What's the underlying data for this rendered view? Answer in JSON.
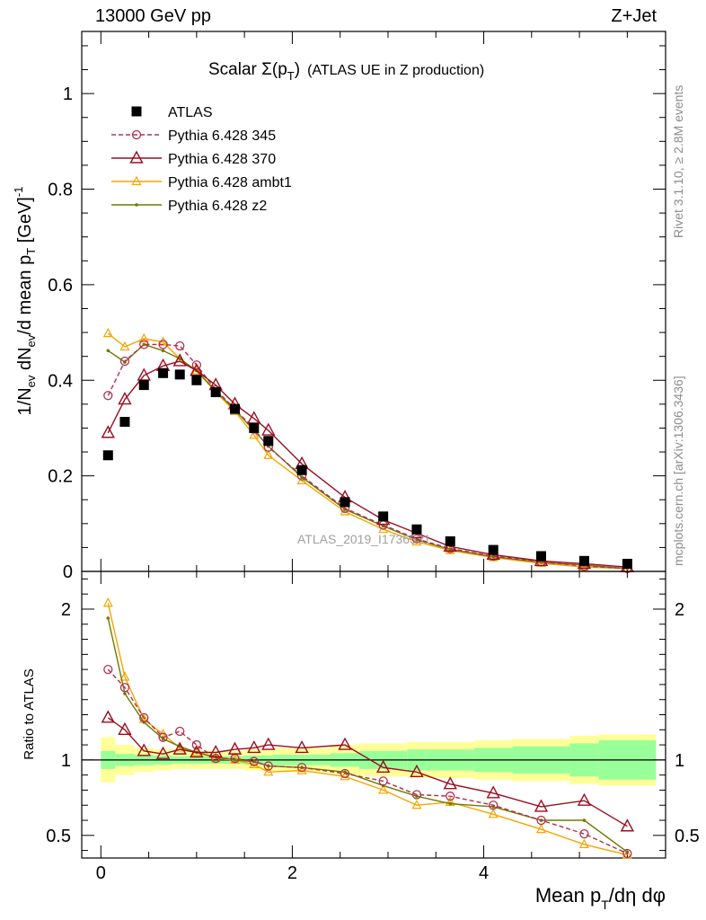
{
  "header": {
    "left": "13000 GeV pp",
    "right": "Z+Jet"
  },
  "title": {
    "main": "Scalar Σ(p",
    "sub": "T",
    "close": ")",
    "extra": "(ATLAS UE in Z production)"
  },
  "side": {
    "rivet": "Rivet 3.1.10, ≥ 2.8M events",
    "mcplots": "mcplots.cern.ch [arXiv:1306.3436]"
  },
  "watermark": "ATLAS_2019_I1736531",
  "colors": {
    "atlas": "#000000",
    "p345": "#b03050",
    "p370": "#9b0d20",
    "ambt1": "#f5a500",
    "z2": "#6e7a00",
    "band_inner": "#99ff99",
    "band_outer": "#ffff99"
  },
  "chart_data": [
    {
      "type": "scatter",
      "xlabel": "Mean p_T/dη dφ",
      "ylabel": "1/N_ev dN_ev/d mean p_T [GeV]^-1",
      "xlim": [
        -0.2,
        5.9
      ],
      "ylim": [
        0,
        1.13
      ],
      "yticks": [
        0,
        0.2,
        0.4,
        0.6,
        0.8,
        1
      ],
      "ytick_labels": [
        "0",
        "0.2",
        "0.4",
        "0.6",
        "0.8",
        "1"
      ],
      "legend_position": "top-left",
      "x": [
        0.075,
        0.25,
        0.45,
        0.65,
        0.825,
        1.0,
        1.2,
        1.4,
        1.6,
        1.75,
        2.1,
        2.55,
        2.95,
        3.3,
        3.65,
        4.1,
        4.6,
        5.05,
        5.5
      ],
      "series": [
        {
          "name": "ATLAS",
          "values": [
            0.243,
            0.313,
            0.39,
            0.415,
            0.412,
            0.4,
            0.375,
            0.34,
            0.3,
            0.273,
            0.212,
            0.145,
            0.115,
            0.088,
            0.063,
            0.045,
            0.032,
            0.022,
            0.016
          ]
        },
        {
          "name": "Pythia 6.428 345",
          "values": [
            0.368,
            0.44,
            0.475,
            0.475,
            0.472,
            0.432,
            0.38,
            0.34,
            0.298,
            0.26,
            0.2,
            0.132,
            0.097,
            0.068,
            0.048,
            0.032,
            0.02,
            0.011,
            0.006
          ]
        },
        {
          "name": "Pythia 6.428 370",
          "values": [
            0.29,
            0.36,
            0.41,
            0.43,
            0.44,
            0.42,
            0.39,
            0.35,
            0.32,
            0.295,
            0.225,
            0.155,
            0.108,
            0.08,
            0.052,
            0.035,
            0.022,
            0.016,
            0.009
          ]
        },
        {
          "name": "Pythia 6.428 ambt1",
          "values": [
            0.498,
            0.47,
            0.487,
            0.48,
            0.445,
            0.42,
            0.375,
            0.335,
            0.285,
            0.243,
            0.19,
            0.125,
            0.088,
            0.062,
            0.044,
            0.029,
            0.017,
            0.009,
            0.006
          ]
        },
        {
          "name": "Pythia 6.428 z2",
          "values": [
            0.462,
            0.438,
            0.475,
            0.462,
            0.445,
            0.42,
            0.378,
            0.338,
            0.295,
            0.262,
            0.197,
            0.13,
            0.095,
            0.066,
            0.046,
            0.031,
            0.019,
            0.013,
            0.006
          ]
        }
      ]
    },
    {
      "type": "line",
      "xlabel": "Mean p_T/dη dφ",
      "ylabel": "Ratio to ATLAS",
      "xlim": [
        -0.2,
        5.9
      ],
      "ylim": [
        0.35,
        2.25
      ],
      "xticks": [
        0,
        2,
        4
      ],
      "xtick_labels": [
        "0",
        "2",
        "4"
      ],
      "yticks": [
        0.5,
        1,
        2
      ],
      "ytick_labels": [
        "0.5",
        "1",
        "2"
      ],
      "reference_line": 1,
      "x": [
        0.075,
        0.25,
        0.45,
        0.65,
        0.825,
        1.0,
        1.2,
        1.4,
        1.6,
        1.75,
        2.1,
        2.55,
        2.95,
        3.3,
        3.65,
        4.1,
        4.6,
        5.05,
        5.5
      ],
      "band_edges": [
        0.0,
        0.15,
        0.35,
        0.55,
        0.75,
        0.9,
        1.1,
        1.3,
        1.5,
        1.7,
        1.8,
        2.4,
        2.7,
        3.2,
        3.4,
        3.9,
        4.3,
        4.9,
        5.2,
        5.8
      ],
      "band_inner": [
        0.06,
        0.04,
        0.035,
        0.03,
        0.025,
        0.025,
        0.025,
        0.025,
        0.03,
        0.03,
        0.035,
        0.045,
        0.06,
        0.07,
        0.07,
        0.08,
        0.09,
        0.11,
        0.13
      ],
      "band_outer": [
        0.15,
        0.1,
        0.08,
        0.07,
        0.06,
        0.06,
        0.06,
        0.06,
        0.07,
        0.07,
        0.08,
        0.1,
        0.11,
        0.12,
        0.12,
        0.13,
        0.14,
        0.16,
        0.17
      ],
      "series": [
        {
          "name": "Pythia 6.428 345",
          "values": [
            1.6,
            1.48,
            1.28,
            1.15,
            1.19,
            1.1,
            1.01,
            1.01,
            0.99,
            0.96,
            0.95,
            0.91,
            0.86,
            0.77,
            0.76,
            0.7,
            0.6,
            0.51,
            0.38
          ]
        },
        {
          "name": "Pythia 6.428 370",
          "values": [
            1.28,
            1.2,
            1.06,
            1.04,
            1.07,
            1.05,
            1.05,
            1.07,
            1.08,
            1.1,
            1.08,
            1.1,
            0.95,
            0.92,
            0.84,
            0.78,
            0.69,
            0.73,
            0.56
          ]
        },
        {
          "name": "Pythia 6.428 ambt1",
          "values": [
            2.04,
            1.55,
            1.27,
            1.17,
            1.08,
            1.05,
            1.01,
            1.0,
            0.97,
            0.92,
            0.93,
            0.89,
            0.8,
            0.7,
            0.72,
            0.64,
            0.54,
            0.44,
            0.37
          ]
        },
        {
          "name": "Pythia 6.428 z2",
          "values": [
            1.94,
            1.44,
            1.25,
            1.14,
            1.09,
            1.05,
            1.02,
            1.0,
            0.99,
            0.96,
            0.95,
            0.92,
            0.83,
            0.76,
            0.71,
            0.69,
            0.6,
            0.6,
            0.39
          ]
        }
      ]
    }
  ]
}
